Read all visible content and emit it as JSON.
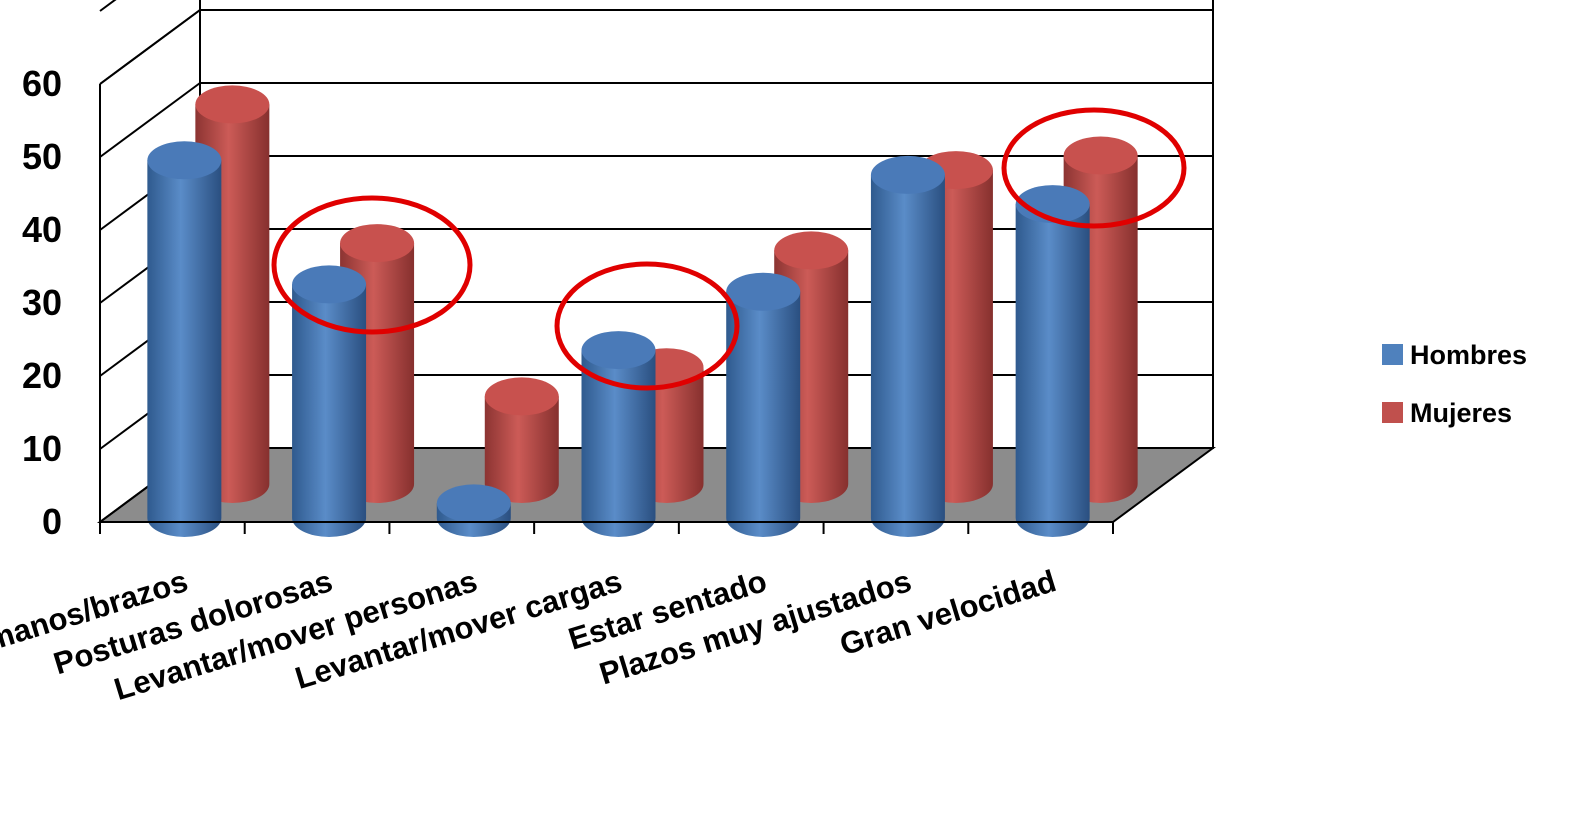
{
  "chart_data": {
    "type": "bar",
    "style": "3d-cylinder",
    "title": "",
    "xlabel": "",
    "ylabel": "",
    "ylim": [
      0,
      60
    ],
    "yticks": [
      0,
      10,
      20,
      30,
      40,
      50,
      60
    ],
    "grid": true,
    "legend_position": "right",
    "categories": [
      "Movimientos repetitivos de manos/brazos",
      "Posturas dolorosas",
      "Levantar/mover personas",
      "Levantar/mover cargas",
      "Estar sentado",
      "Plazos muy ajustados",
      "Gran velocidad"
    ],
    "series": [
      {
        "name": "Hombres",
        "color": "#4F81BD",
        "values": [
          49,
          32,
          2,
          23,
          31,
          47,
          43
        ]
      },
      {
        "name": "Mujeres",
        "color": "#C0504D",
        "values": [
          52,
          33,
          12,
          16,
          32,
          43,
          45
        ]
      }
    ],
    "annotations": [
      {
        "type": "ellipse",
        "color": "#E00000",
        "category_index": 1
      },
      {
        "type": "ellipse",
        "color": "#E00000",
        "category_index": 3
      },
      {
        "type": "ellipse",
        "color": "#E00000",
        "category_index": 6
      }
    ]
  }
}
